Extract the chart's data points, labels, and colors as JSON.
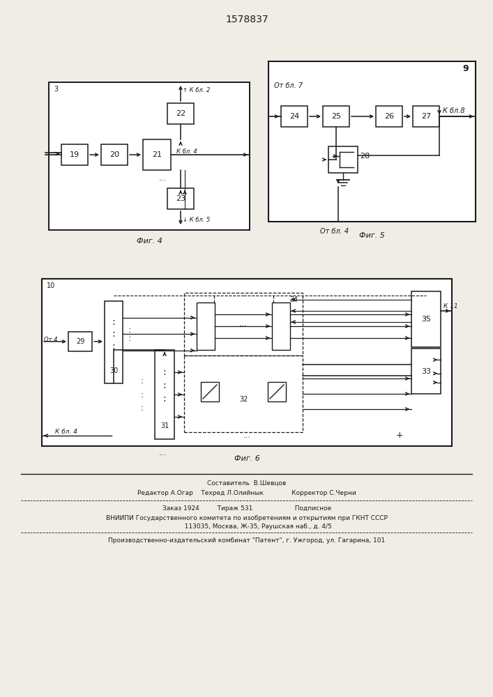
{
  "title": "1578837",
  "fig4_label": "Фиг. 4",
  "fig5_label": "Фиг. 5",
  "fig6_label": "Фиг. 6",
  "bg_color": "#f0ede6",
  "lc": "#1a1a1a",
  "footer_line1": "Составитель  В.Шевцов",
  "footer_line2": "Редактор А.Огар    Техред Л.Олийнык              Корректор С.Черни",
  "footer_line3": "Заказ 1924         Тираж 531                     Подписное",
  "footer_line4": "ВНИИПИ Государственного комитета по изобретениям и открытиям при ГКНТ СССР",
  "footer_line5": "           113035, Москва, Ж-35, Раушская наб., д. 4/5",
  "footer_line6": "Производственно-издательский комбинат \"Патент\", г. Ужгород, ул. Гагарина, 101"
}
